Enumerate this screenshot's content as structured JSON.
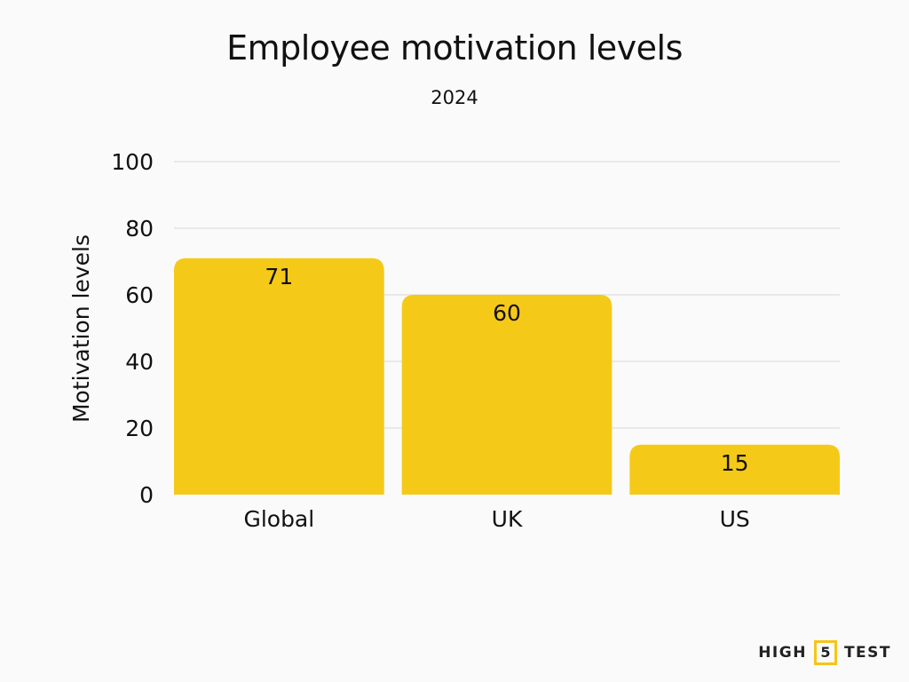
{
  "chart_data": {
    "type": "bar",
    "title": "Employee motivation levels",
    "subtitle": "2024",
    "xlabel": "",
    "ylabel": "Motivation levels",
    "categories": [
      "Global",
      "UK",
      "US"
    ],
    "values": [
      71,
      60,
      15
    ],
    "data_labels": [
      "71",
      "60",
      "15"
    ],
    "ylim": [
      0,
      100
    ],
    "yticks": [
      0,
      20,
      40,
      60,
      80,
      100
    ],
    "ytick_labels": [
      "0",
      "20",
      "40",
      "60",
      "80",
      "100"
    ],
    "grid": true,
    "legend": "none",
    "bar_color": "#f5c918"
  },
  "branding": {
    "logo_left": "HIGH",
    "logo_mid": "5",
    "logo_right": "TEST",
    "accent_color": "#f5c518"
  }
}
